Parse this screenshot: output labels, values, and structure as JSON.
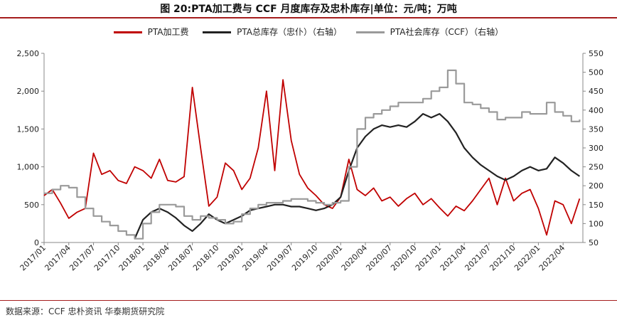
{
  "header": {
    "title": "图 20:PTA加工费与 CCF 月度库存及忠朴库存|单位：元/吨；万吨"
  },
  "footer": {
    "source": "数据来源：CCF 忠朴资讯 华泰期货研究院"
  },
  "colors": {
    "accent": "#a51d1d",
    "pta_fee": "#c00000",
    "pta_total_stock": "#222222",
    "pta_social_stock": "#9a9a9a"
  },
  "chart_data": {
    "type": "line",
    "title": "PTA加工费与 CCF 月度库存及忠朴库存",
    "legend_position": "top",
    "grid": false,
    "x_start": "2017/01",
    "x_end": "2022/06",
    "x_tick_labels": [
      "2017/01",
      "2017/04",
      "2017/07",
      "2017/10",
      "2018/01",
      "2018/04",
      "2018/07",
      "2018/10",
      "2019/01",
      "2019/04",
      "2019/07",
      "2019/10",
      "2020/01",
      "2020/04",
      "2020/07",
      "2020/10",
      "2021/01",
      "2021/04",
      "2021/07",
      "2021/10",
      "2022/01",
      "2022/04"
    ],
    "y_left": {
      "ylim": [
        0,
        2500
      ],
      "ticks": [
        "0",
        "500",
        "1,000",
        "1,500",
        "2,000",
        "2,500"
      ]
    },
    "y_right": {
      "ylim": [
        50,
        550
      ],
      "ticks": [
        "50",
        "100",
        "150",
        "200",
        "250",
        "300",
        "350",
        "400",
        "450",
        "500",
        "550"
      ]
    },
    "series": [
      {
        "name": "PTA加工费",
        "axis": "left",
        "points": [
          [
            "2017/01",
            620
          ],
          [
            "2017/02",
            700
          ],
          [
            "2017/03",
            520
          ],
          [
            "2017/04",
            320
          ],
          [
            "2017/05",
            400
          ],
          [
            "2017/06",
            450
          ],
          [
            "2017/07",
            1180
          ],
          [
            "2017/08",
            900
          ],
          [
            "2017/09",
            950
          ],
          [
            "2017/10",
            820
          ],
          [
            "2017/11",
            780
          ],
          [
            "2017/12",
            1000
          ],
          [
            "2018/01",
            950
          ],
          [
            "2018/02",
            850
          ],
          [
            "2018/03",
            1100
          ],
          [
            "2018/04",
            820
          ],
          [
            "2018/05",
            800
          ],
          [
            "2018/06",
            870
          ],
          [
            "2018/07",
            2050
          ],
          [
            "2018/08",
            1250
          ],
          [
            "2018/09",
            480
          ],
          [
            "2018/10",
            600
          ],
          [
            "2018/11",
            1050
          ],
          [
            "2018/12",
            950
          ],
          [
            "2019/01",
            700
          ],
          [
            "2019/02",
            850
          ],
          [
            "2019/03",
            1250
          ],
          [
            "2019/04",
            2000
          ],
          [
            "2019/05",
            950
          ],
          [
            "2019/06",
            2150
          ],
          [
            "2019/07",
            1350
          ],
          [
            "2019/08",
            900
          ],
          [
            "2019/09",
            720
          ],
          [
            "2019/10",
            620
          ],
          [
            "2019/11",
            500
          ],
          [
            "2019/12",
            450
          ],
          [
            "2020/01",
            600
          ],
          [
            "2020/02",
            1100
          ],
          [
            "2020/03",
            700
          ],
          [
            "2020/04",
            620
          ],
          [
            "2020/05",
            720
          ],
          [
            "2020/06",
            550
          ],
          [
            "2020/07",
            600
          ],
          [
            "2020/08",
            480
          ],
          [
            "2020/09",
            580
          ],
          [
            "2020/10",
            650
          ],
          [
            "2020/11",
            500
          ],
          [
            "2020/12",
            580
          ],
          [
            "2021/01",
            460
          ],
          [
            "2021/02",
            350
          ],
          [
            "2021/03",
            480
          ],
          [
            "2021/04",
            420
          ],
          [
            "2021/05",
            550
          ],
          [
            "2021/06",
            700
          ],
          [
            "2021/07",
            850
          ],
          [
            "2021/08",
            500
          ],
          [
            "2021/09",
            850
          ],
          [
            "2021/10",
            550
          ],
          [
            "2021/11",
            650
          ],
          [
            "2021/12",
            700
          ],
          [
            "2022/01",
            450
          ],
          [
            "2022/02",
            100
          ],
          [
            "2022/03",
            550
          ],
          [
            "2022/04",
            500
          ],
          [
            "2022/05",
            250
          ],
          [
            "2022/06",
            580
          ]
        ]
      },
      {
        "name": "PTA总库存（忠仆）（右轴）",
        "axis": "right",
        "points": [
          [
            "2017/12",
            60
          ],
          [
            "2018/01",
            110
          ],
          [
            "2018/02",
            130
          ],
          [
            "2018/03",
            140
          ],
          [
            "2018/04",
            130
          ],
          [
            "2018/05",
            115
          ],
          [
            "2018/06",
            95
          ],
          [
            "2018/07",
            80
          ],
          [
            "2018/08",
            100
          ],
          [
            "2018/09",
            125
          ],
          [
            "2018/10",
            110
          ],
          [
            "2018/11",
            100
          ],
          [
            "2018/12",
            110
          ],
          [
            "2019/01",
            120
          ],
          [
            "2019/02",
            135
          ],
          [
            "2019/03",
            140
          ],
          [
            "2019/04",
            145
          ],
          [
            "2019/05",
            150
          ],
          [
            "2019/06",
            150
          ],
          [
            "2019/07",
            145
          ],
          [
            "2019/08",
            145
          ],
          [
            "2019/09",
            140
          ],
          [
            "2019/10",
            135
          ],
          [
            "2019/11",
            140
          ],
          [
            "2019/12",
            150
          ],
          [
            "2020/01",
            170
          ],
          [
            "2020/02",
            240
          ],
          [
            "2020/03",
            300
          ],
          [
            "2020/04",
            330
          ],
          [
            "2020/05",
            350
          ],
          [
            "2020/06",
            360
          ],
          [
            "2020/07",
            355
          ],
          [
            "2020/08",
            360
          ],
          [
            "2020/09",
            355
          ],
          [
            "2020/10",
            370
          ],
          [
            "2020/11",
            390
          ],
          [
            "2020/12",
            380
          ],
          [
            "2021/01",
            390
          ],
          [
            "2021/02",
            370
          ],
          [
            "2021/03",
            340
          ],
          [
            "2021/04",
            300
          ],
          [
            "2021/05",
            275
          ],
          [
            "2021/06",
            255
          ],
          [
            "2021/07",
            240
          ],
          [
            "2021/08",
            225
          ],
          [
            "2021/09",
            215
          ],
          [
            "2021/10",
            225
          ],
          [
            "2021/11",
            240
          ],
          [
            "2021/12",
            250
          ],
          [
            "2022/01",
            240
          ],
          [
            "2022/02",
            245
          ],
          [
            "2022/03",
            275
          ],
          [
            "2022/04",
            260
          ],
          [
            "2022/05",
            240
          ],
          [
            "2022/06",
            225
          ]
        ]
      },
      {
        "name": "PTA社会库存（CCF）（右轴）",
        "axis": "right",
        "points": [
          [
            "2017/01",
            180
          ],
          [
            "2017/02",
            190
          ],
          [
            "2017/03",
            200
          ],
          [
            "2017/04",
            195
          ],
          [
            "2017/05",
            170
          ],
          [
            "2017/06",
            140
          ],
          [
            "2017/07",
            120
          ],
          [
            "2017/08",
            105
          ],
          [
            "2017/09",
            95
          ],
          [
            "2017/10",
            80
          ],
          [
            "2017/11",
            70
          ],
          [
            "2017/12",
            60
          ],
          [
            "2018/01",
            100
          ],
          [
            "2018/02",
            130
          ],
          [
            "2018/03",
            150
          ],
          [
            "2018/04",
            150
          ],
          [
            "2018/05",
            145
          ],
          [
            "2018/06",
            120
          ],
          [
            "2018/07",
            110
          ],
          [
            "2018/08",
            120
          ],
          [
            "2018/09",
            115
          ],
          [
            "2018/10",
            110
          ],
          [
            "2018/11",
            100
          ],
          [
            "2018/12",
            105
          ],
          [
            "2019/01",
            125
          ],
          [
            "2019/02",
            140
          ],
          [
            "2019/03",
            150
          ],
          [
            "2019/04",
            155
          ],
          [
            "2019/05",
            155
          ],
          [
            "2019/06",
            160
          ],
          [
            "2019/07",
            165
          ],
          [
            "2019/08",
            165
          ],
          [
            "2019/09",
            160
          ],
          [
            "2019/10",
            155
          ],
          [
            "2019/11",
            150
          ],
          [
            "2019/12",
            155
          ],
          [
            "2020/01",
            160
          ],
          [
            "2020/02",
            250
          ],
          [
            "2020/03",
            350
          ],
          [
            "2020/04",
            380
          ],
          [
            "2020/05",
            390
          ],
          [
            "2020/06",
            400
          ],
          [
            "2020/07",
            410
          ],
          [
            "2020/08",
            420
          ],
          [
            "2020/09",
            420
          ],
          [
            "2020/10",
            420
          ],
          [
            "2020/11",
            430
          ],
          [
            "2020/12",
            450
          ],
          [
            "2021/01",
            460
          ],
          [
            "2021/02",
            505
          ],
          [
            "2021/03",
            470
          ],
          [
            "2021/04",
            420
          ],
          [
            "2021/05",
            415
          ],
          [
            "2021/06",
            405
          ],
          [
            "2021/07",
            395
          ],
          [
            "2021/08",
            375
          ],
          [
            "2021/09",
            380
          ],
          [
            "2021/10",
            380
          ],
          [
            "2021/11",
            395
          ],
          [
            "2021/12",
            390
          ],
          [
            "2022/01",
            390
          ],
          [
            "2022/02",
            420
          ],
          [
            "2022/03",
            395
          ],
          [
            "2022/04",
            385
          ],
          [
            "2022/05",
            370
          ],
          [
            "2022/06",
            375
          ]
        ]
      }
    ]
  }
}
